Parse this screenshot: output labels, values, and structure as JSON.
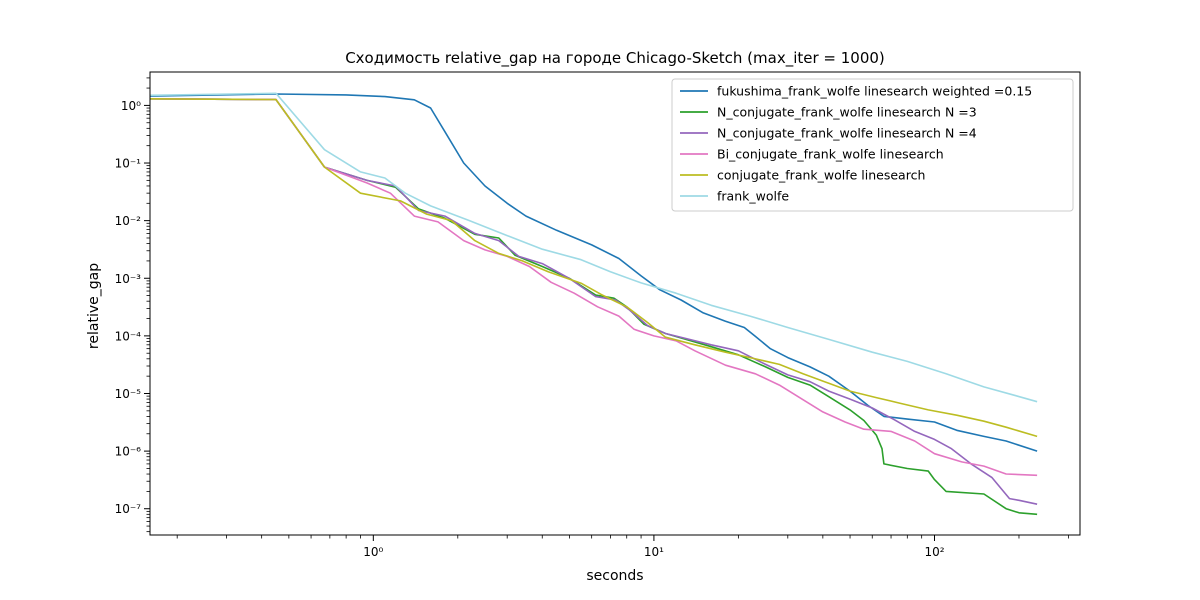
{
  "chart_data": {
    "type": "line",
    "title": "Сходимость relative_gap на городе Chicago-Sketch  (max_iter = 1000)",
    "xlabel": "seconds",
    "ylabel": "relative_gap",
    "xscale": "log",
    "yscale": "log",
    "xlim": [
      0.16,
      330
    ],
    "ylim": [
      3.5e-08,
      3.8
    ],
    "grid": false,
    "legend_position": "top-right",
    "x_ticks": [
      {
        "value": 1,
        "label": "10⁰"
      },
      {
        "value": 10,
        "label": "10¹"
      },
      {
        "value": 100,
        "label": "10²"
      }
    ],
    "y_ticks": [
      {
        "value": 1e-07,
        "label": "10⁻⁷"
      },
      {
        "value": 1e-06,
        "label": "10⁻⁶"
      },
      {
        "value": 1e-05,
        "label": "10⁻⁵"
      },
      {
        "value": 0.0001,
        "label": "10⁻⁴"
      },
      {
        "value": 0.001,
        "label": "10⁻³"
      },
      {
        "value": 0.01,
        "label": "10⁻²"
      },
      {
        "value": 0.1,
        "label": "10⁻¹"
      },
      {
        "value": 1,
        "label": "10⁰"
      }
    ],
    "series": [
      {
        "name": "fukushima_frank_wolfe linesearch weighted =0.15",
        "color": "#1f77b4",
        "points": [
          [
            0.16,
            1.45
          ],
          [
            0.45,
            1.58
          ],
          [
            0.8,
            1.52
          ],
          [
            1.1,
            1.42
          ],
          [
            1.4,
            1.25
          ],
          [
            1.6,
            0.9
          ],
          [
            1.8,
            0.35
          ],
          [
            2.1,
            0.1
          ],
          [
            2.5,
            0.04
          ],
          [
            3.0,
            0.02
          ],
          [
            3.5,
            0.012
          ],
          [
            4.5,
            0.0068
          ],
          [
            6.0,
            0.0038
          ],
          [
            7.5,
            0.0022
          ],
          [
            9.0,
            0.0011
          ],
          [
            10.5,
            0.00063
          ],
          [
            12.5,
            0.00042
          ],
          [
            15,
            0.00025
          ],
          [
            18,
            0.00018
          ],
          [
            21,
            0.00014
          ],
          [
            23,
            9.8e-05
          ],
          [
            26,
            6e-05
          ],
          [
            30,
            4.2e-05
          ],
          [
            36,
            2.9e-05
          ],
          [
            42,
            2e-05
          ],
          [
            50,
            1.1e-05
          ],
          [
            58,
            6.2e-06
          ],
          [
            66,
            4e-06
          ],
          [
            80,
            3.6e-06
          ],
          [
            100,
            3.2e-06
          ],
          [
            120,
            2.3e-06
          ],
          [
            150,
            1.8e-06
          ],
          [
            180,
            1.5e-06
          ],
          [
            232,
            1e-06
          ]
        ]
      },
      {
        "name": "N_conjugate_frank_wolfe linesearch N =3",
        "color": "#2ca02c",
        "points": [
          [
            0.16,
            1.3
          ],
          [
            0.45,
            1.26
          ],
          [
            0.67,
            0.085
          ],
          [
            0.95,
            0.05
          ],
          [
            1.2,
            0.038
          ],
          [
            1.45,
            0.016
          ],
          [
            1.8,
            0.011
          ],
          [
            2.3,
            0.0058
          ],
          [
            2.8,
            0.005
          ],
          [
            3.2,
            0.0025
          ],
          [
            4.0,
            0.0016
          ],
          [
            5.0,
            0.001
          ],
          [
            6.2,
            0.00051
          ],
          [
            7.2,
            0.00045
          ],
          [
            8.0,
            0.00032
          ],
          [
            9.2,
            0.00016
          ],
          [
            11,
            0.00011
          ],
          [
            13,
            8.7e-05
          ],
          [
            16,
            6.5e-05
          ],
          [
            20,
            4.7e-05
          ],
          [
            25,
            2.9e-05
          ],
          [
            30,
            1.9e-05
          ],
          [
            36,
            1.4e-05
          ],
          [
            42,
            8.8e-06
          ],
          [
            50,
            5.2e-06
          ],
          [
            56,
            3.4e-06
          ],
          [
            62,
            1.9e-06
          ],
          [
            65,
            1.1e-06
          ],
          [
            66,
            6e-07
          ],
          [
            80,
            5e-07
          ],
          [
            95,
            4.5e-07
          ],
          [
            100,
            3.2e-07
          ],
          [
            110,
            2e-07
          ],
          [
            150,
            1.8e-07
          ],
          [
            180,
            1e-07
          ],
          [
            200,
            8.5e-08
          ],
          [
            232,
            8e-08
          ]
        ]
      },
      {
        "name": "N_conjugate_frank_wolfe linesearch N =4",
        "color": "#9467bd",
        "points": [
          [
            0.16,
            1.3
          ],
          [
            0.45,
            1.26
          ],
          [
            0.67,
            0.085
          ],
          [
            0.95,
            0.05
          ],
          [
            1.2,
            0.04
          ],
          [
            1.45,
            0.015
          ],
          [
            1.8,
            0.012
          ],
          [
            2.3,
            0.006
          ],
          [
            2.8,
            0.0045
          ],
          [
            3.3,
            0.0024
          ],
          [
            4.0,
            0.0018
          ],
          [
            5.0,
            0.00099
          ],
          [
            6.2,
            0.00048
          ],
          [
            7.3,
            0.00042
          ],
          [
            8.2,
            0.00028
          ],
          [
            9.5,
            0.00015
          ],
          [
            11,
            0.00011
          ],
          [
            13,
            9e-05
          ],
          [
            16,
            7e-05
          ],
          [
            20,
            5.5e-05
          ],
          [
            25,
            3.2e-05
          ],
          [
            30,
            2.1e-05
          ],
          [
            36,
            1.6e-05
          ],
          [
            42,
            1.1e-05
          ],
          [
            50,
            8e-06
          ],
          [
            60,
            5.6e-06
          ],
          [
            72,
            3.5e-06
          ],
          [
            85,
            2.2e-06
          ],
          [
            100,
            1.6e-06
          ],
          [
            115,
            1.1e-06
          ],
          [
            135,
            6e-07
          ],
          [
            160,
            3.5e-07
          ],
          [
            185,
            1.5e-07
          ],
          [
            200,
            1.4e-07
          ],
          [
            232,
            1.2e-07
          ]
        ]
      },
      {
        "name": "Bi_conjugate_frank_wolfe linesearch",
        "color": "#e377c2",
        "points": [
          [
            0.16,
            1.3
          ],
          [
            0.45,
            1.26
          ],
          [
            0.67,
            0.085
          ],
          [
            0.95,
            0.045
          ],
          [
            1.15,
            0.03
          ],
          [
            1.4,
            0.012
          ],
          [
            1.7,
            0.0095
          ],
          [
            2.1,
            0.0045
          ],
          [
            2.5,
            0.0031
          ],
          [
            3.0,
            0.0024
          ],
          [
            3.6,
            0.0016
          ],
          [
            4.3,
            0.00085
          ],
          [
            5.2,
            0.00055
          ],
          [
            6.3,
            0.00032
          ],
          [
            7.5,
            0.00022
          ],
          [
            8.5,
            0.00013
          ],
          [
            10,
            0.0001
          ],
          [
            12,
            8.2e-05
          ],
          [
            14,
            5.5e-05
          ],
          [
            18,
            3.1e-05
          ],
          [
            23,
            2.2e-05
          ],
          [
            28,
            1.4e-05
          ],
          [
            34,
            7.8e-06
          ],
          [
            40,
            4.8e-06
          ],
          [
            48,
            3.2e-06
          ],
          [
            56,
            2.4e-06
          ],
          [
            70,
            2.2e-06
          ],
          [
            85,
            1.5e-06
          ],
          [
            100,
            9e-07
          ],
          [
            125,
            6.5e-07
          ],
          [
            150,
            5.5e-07
          ],
          [
            180,
            4e-07
          ],
          [
            232,
            3.8e-07
          ]
        ]
      },
      {
        "name": "conjugate_frank_wolfe linesearch",
        "color": "#bcbd22",
        "points": [
          [
            0.16,
            1.3
          ],
          [
            0.45,
            1.26
          ],
          [
            0.67,
            0.085
          ],
          [
            0.9,
            0.03
          ],
          [
            1.25,
            0.022
          ],
          [
            1.55,
            0.013
          ],
          [
            1.9,
            0.01
          ],
          [
            2.3,
            0.0045
          ],
          [
            2.8,
            0.0027
          ],
          [
            3.4,
            0.002
          ],
          [
            4.2,
            0.0013
          ],
          [
            5.5,
            0.00082
          ],
          [
            6.5,
            0.00052
          ],
          [
            8.0,
            0.00032
          ],
          [
            9.5,
            0.00017
          ],
          [
            11,
            9.5e-05
          ],
          [
            14,
            7e-05
          ],
          [
            18,
            5.2e-05
          ],
          [
            22,
            4.2e-05
          ],
          [
            28,
            3.2e-05
          ],
          [
            34,
            2.2e-05
          ],
          [
            42,
            1.5e-05
          ],
          [
            50,
            1.1e-05
          ],
          [
            62,
            8.5e-06
          ],
          [
            75,
            6.8e-06
          ],
          [
            95,
            5.2e-06
          ],
          [
            120,
            4.2e-06
          ],
          [
            150,
            3.3e-06
          ],
          [
            180,
            2.6e-06
          ],
          [
            232,
            1.8e-06
          ]
        ]
      },
      {
        "name": "frank_wolfe",
        "color": "#9edae5",
        "points": [
          [
            0.16,
            1.5
          ],
          [
            0.45,
            1.62
          ],
          [
            0.67,
            0.17
          ],
          [
            0.9,
            0.07
          ],
          [
            1.1,
            0.055
          ],
          [
            1.3,
            0.03
          ],
          [
            1.6,
            0.018
          ],
          [
            2.2,
            0.01
          ],
          [
            3.0,
            0.0055
          ],
          [
            4.0,
            0.0032
          ],
          [
            5.5,
            0.0021
          ],
          [
            7.0,
            0.0013
          ],
          [
            9.0,
            0.00083
          ],
          [
            12,
            0.00055
          ],
          [
            16,
            0.00034
          ],
          [
            22,
            0.00022
          ],
          [
            30,
            0.00014
          ],
          [
            42,
            8.7e-05
          ],
          [
            60,
            5.2e-05
          ],
          [
            80,
            3.6e-05
          ],
          [
            110,
            2.2e-05
          ],
          [
            150,
            1.3e-05
          ],
          [
            190,
            9.5e-06
          ],
          [
            232,
            7.2e-06
          ]
        ]
      }
    ]
  }
}
